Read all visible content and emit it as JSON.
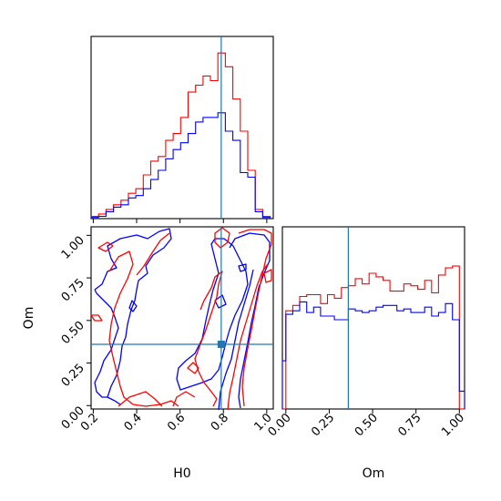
{
  "chart_data": {
    "type": "corner",
    "parameters": [
      "H0",
      "Om"
    ],
    "truth": {
      "H0": 0.79,
      "Om": 0.36
    },
    "colors": {
      "red_series": "#ff0000",
      "blue_series": "#0000ff",
      "truth_line": "#1f77b4"
    },
    "panels": [
      {
        "type": "histogram",
        "parameter": "H0",
        "xlim": [
          0.19,
          1.03
        ],
        "bin_edges": [
          0.19,
          0.2244,
          0.2588,
          0.2932,
          0.3276,
          0.362,
          0.3964,
          0.4308,
          0.4652,
          0.4996,
          0.534,
          0.5684,
          0.6028,
          0.6372,
          0.6716,
          0.706,
          0.7404,
          0.7748,
          0.8092,
          0.8436,
          0.878,
          0.9124,
          0.9468,
          0.9812,
          1.0156
        ],
        "series": [
          {
            "color": "red",
            "values": [
              1,
              2,
              4,
              6,
              8,
              11,
              13,
              19,
              25,
              27,
              34,
              37,
              44,
              55,
              58,
              62,
              60,
              72,
              66,
              52,
              38,
              21,
              4,
              1
            ]
          },
          {
            "color": "blue",
            "values": [
              0.5,
              1,
              3,
              5,
              6,
              9,
              10,
              13,
              17,
              21,
              26,
              30,
              33,
              37,
              42,
              44,
              44,
              46,
              38,
              34,
              20,
              18,
              3,
              0.5
            ]
          }
        ]
      },
      {
        "type": "contour",
        "xparam": "H0",
        "yparam": "Om",
        "xlim": [
          0.19,
          1.03
        ],
        "ylim": [
          -0.02,
          1.05
        ],
        "xticks": [
          0.2,
          0.4,
          0.6,
          0.8,
          1.0
        ],
        "xtick_labels": [
          "0.2",
          "0.4",
          "0.6",
          "0.8",
          "1.0"
        ],
        "yticks": [
          0.0,
          0.25,
          0.5,
          0.75,
          1.0
        ],
        "ytick_labels": [
          "0.00",
          "0.25",
          "0.50",
          "0.75",
          "1.00"
        ],
        "xlabel": "H0",
        "ylabel": "Om"
      },
      {
        "type": "histogram",
        "parameter": "Om",
        "xlim": [
          -0.02,
          1.03
        ],
        "xticks": [
          0.0,
          0.25,
          0.5,
          0.75,
          1.0
        ],
        "xtick_labels": [
          "0.00",
          "0.25",
          "0.50",
          "0.75",
          "1.00"
        ],
        "xlabel": "Om",
        "bin_edges": [
          -0.02,
          0.0,
          0.04,
          0.08,
          0.12,
          0.16,
          0.2,
          0.24,
          0.28,
          0.32,
          0.36,
          0.4,
          0.44,
          0.48,
          0.52,
          0.56,
          0.6,
          0.64,
          0.68,
          0.72,
          0.76,
          0.8,
          0.84,
          0.88,
          0.92,
          0.96,
          1.0,
          1.03
        ],
        "series": [
          {
            "color": "red",
            "values": [
              0,
              55,
              58,
              63,
              64,
              64,
              59,
              64,
              62,
              68,
              69,
              73,
              70,
              76,
              74,
              72,
              66,
              66,
              70,
              69,
              67,
              72,
              65,
              75,
              79,
              80,
              0
            ]
          },
          {
            "color": "blue",
            "values": [
              27,
              53,
              55,
              60,
              54,
              57,
              52,
              52,
              50,
              50,
              56,
              55,
              54,
              55,
              57,
              58,
              58,
              55,
              56,
              54,
              54,
              57,
              52,
              54,
              59,
              50,
              10
            ]
          }
        ],
        "ylim": [
          0,
          102
        ]
      }
    ]
  }
}
